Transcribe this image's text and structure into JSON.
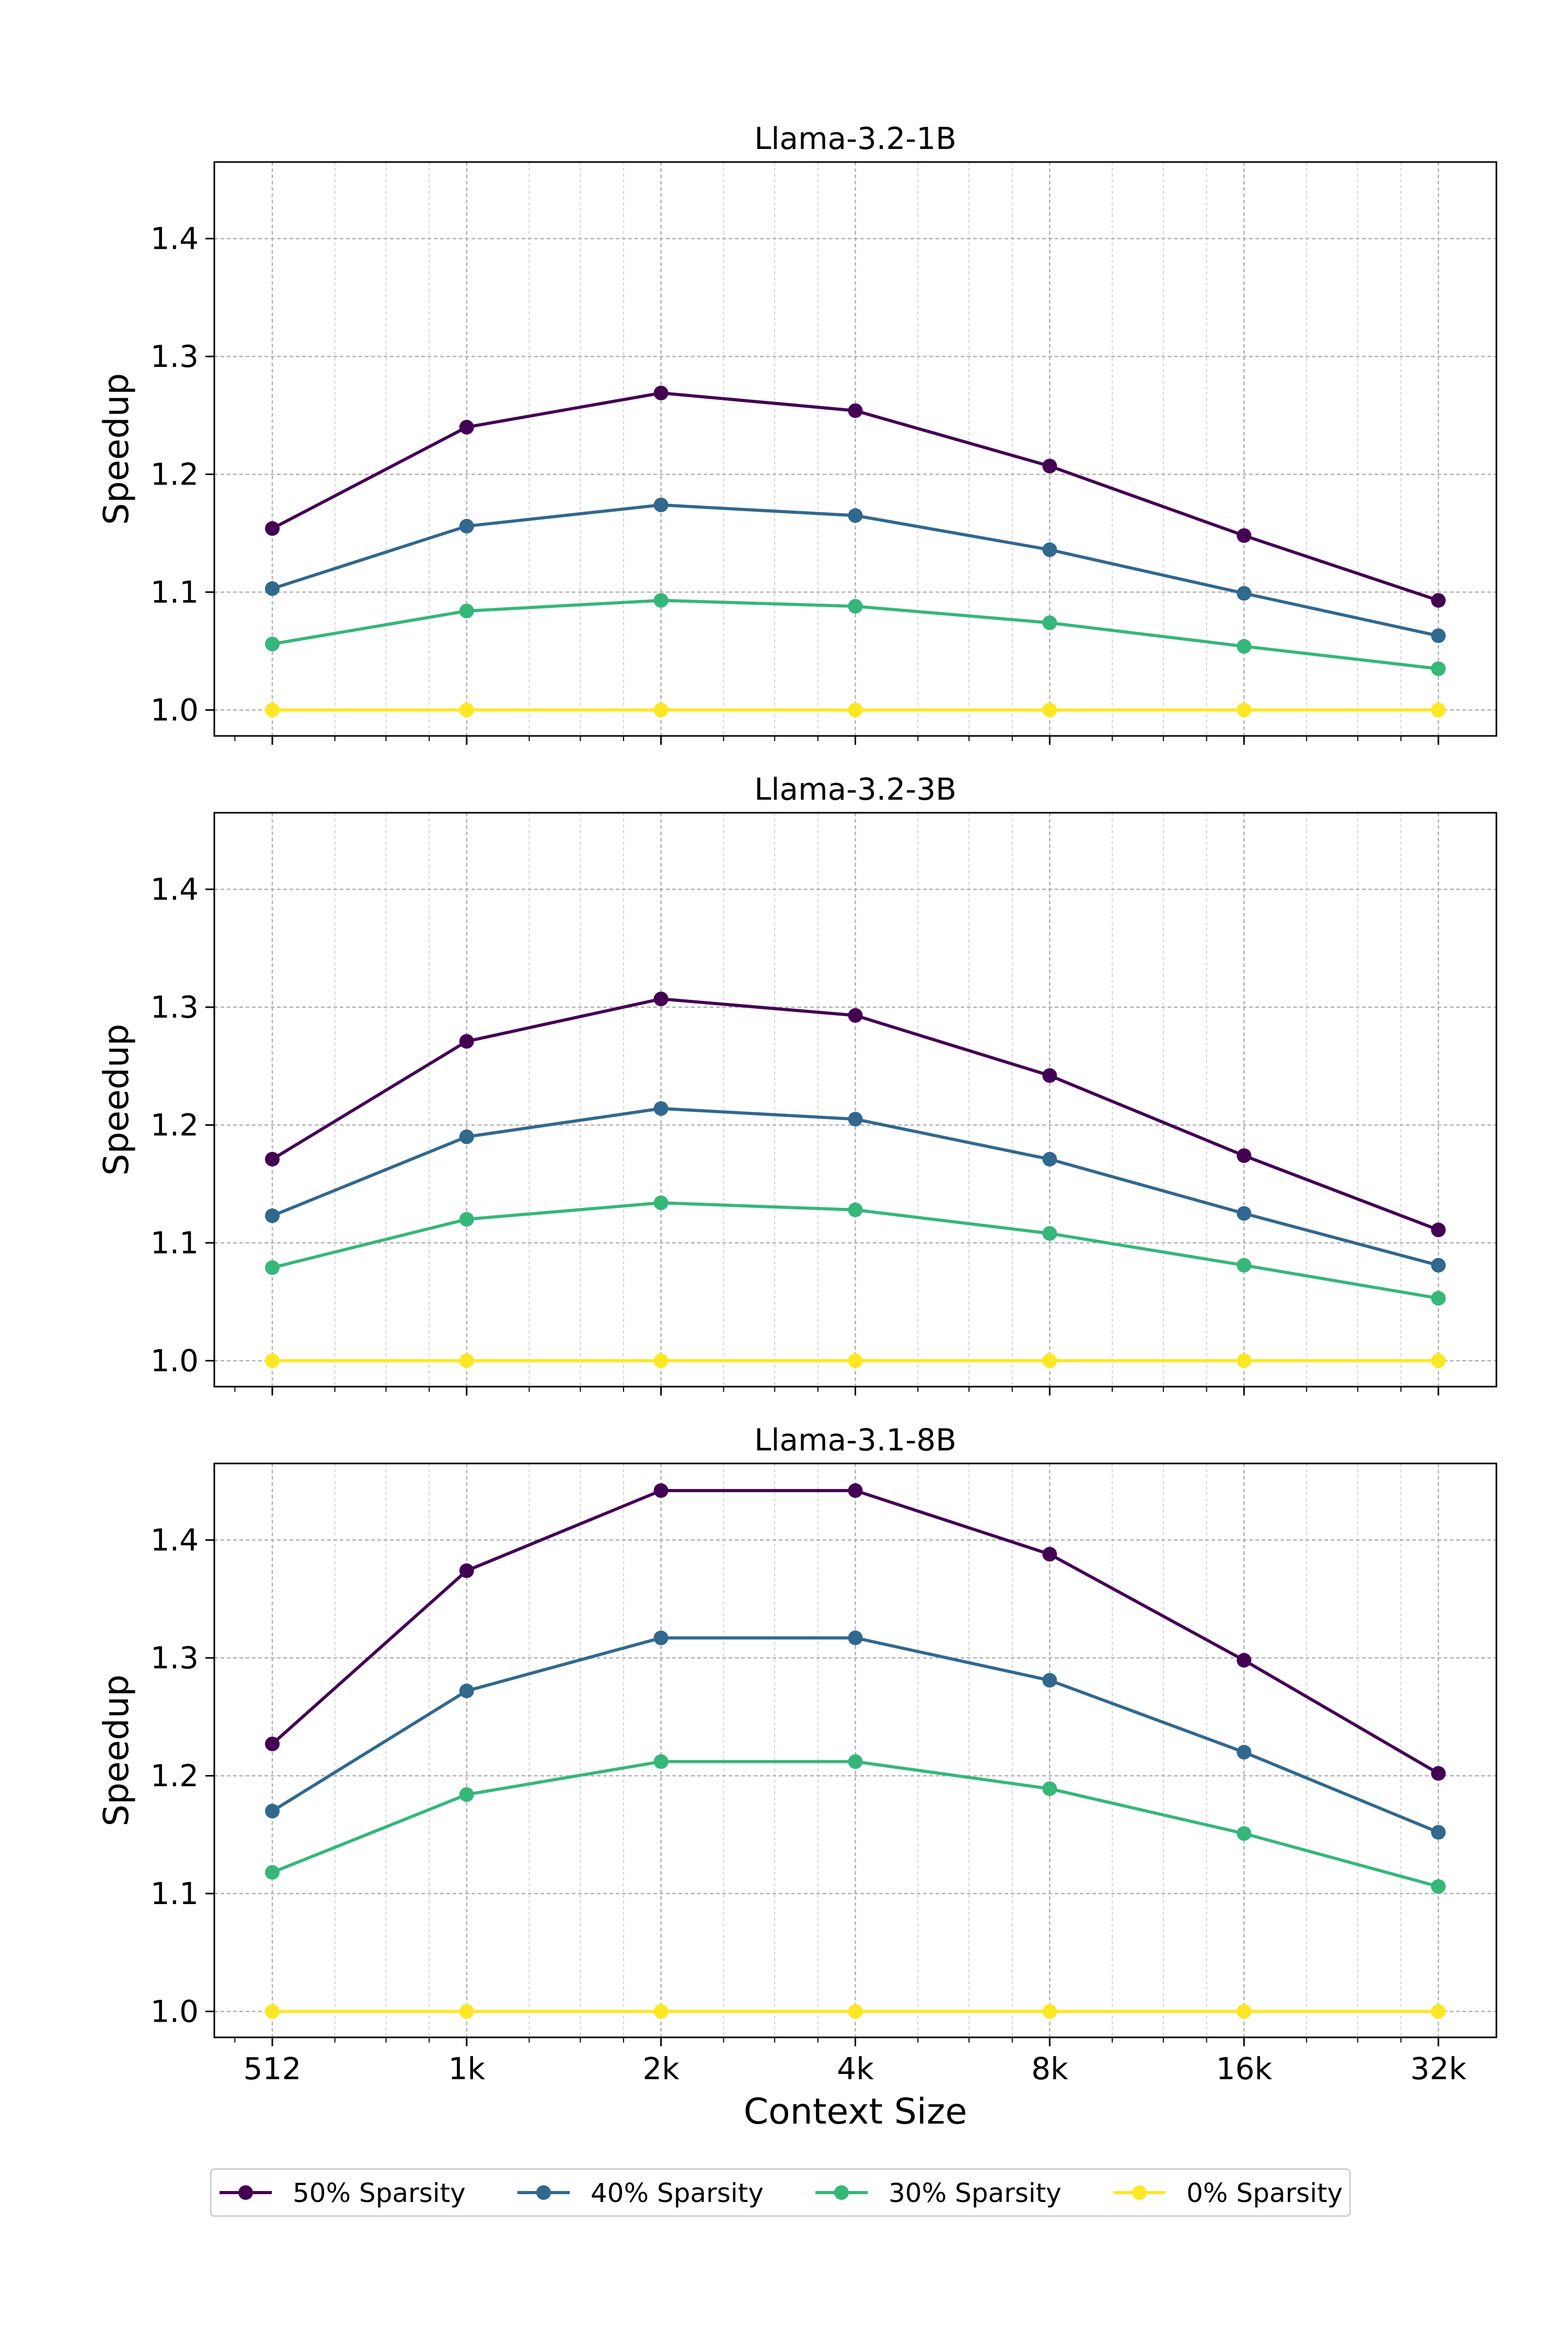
{
  "legend": {
    "placement": "bottom-center",
    "items": [
      {
        "label": "50% Sparsity",
        "color": "#440154"
      },
      {
        "label": "40% Sparsity",
        "color": "#31688e"
      },
      {
        "label": "30% Sparsity",
        "color": "#35b779"
      },
      {
        "label": "0% Sparsity",
        "color": "#fde725"
      }
    ]
  },
  "chart_data": [
    {
      "type": "line",
      "title": "Llama-3.2-1B",
      "xlabel": "",
      "ylabel": "Speedup",
      "x": [
        512,
        1024,
        2048,
        4096,
        8192,
        16384,
        32768
      ],
      "categories": [
        "512",
        "1k",
        "2k",
        "4k",
        "8k",
        "16k",
        "32k"
      ],
      "xscale": "log2",
      "ylim": [
        0.978,
        1.465
      ],
      "yticks": [
        "1.0",
        "1.1",
        "1.2",
        "1.3",
        "1.4"
      ],
      "grid": true,
      "series": [
        {
          "name": "50% Sparsity",
          "color": "#440154",
          "values": [
            1.154,
            1.24,
            1.269,
            1.254,
            1.207,
            1.148,
            1.093
          ]
        },
        {
          "name": "40% Sparsity",
          "color": "#31688e",
          "values": [
            1.103,
            1.156,
            1.174,
            1.165,
            1.136,
            1.099,
            1.063
          ]
        },
        {
          "name": "30% Sparsity",
          "color": "#35b779",
          "values": [
            1.056,
            1.084,
            1.093,
            1.088,
            1.074,
            1.054,
            1.035
          ]
        },
        {
          "name": "0% Sparsity",
          "color": "#fde725",
          "values": [
            1.0,
            1.0,
            1.0,
            1.0,
            1.0,
            1.0,
            1.0
          ]
        }
      ]
    },
    {
      "type": "line",
      "title": "Llama-3.2-3B",
      "xlabel": "",
      "ylabel": "Speedup",
      "x": [
        512,
        1024,
        2048,
        4096,
        8192,
        16384,
        32768
      ],
      "categories": [
        "512",
        "1k",
        "2k",
        "4k",
        "8k",
        "16k",
        "32k"
      ],
      "xscale": "log2",
      "ylim": [
        0.978,
        1.465
      ],
      "yticks": [
        "1.0",
        "1.1",
        "1.2",
        "1.3",
        "1.4"
      ],
      "grid": true,
      "series": [
        {
          "name": "50% Sparsity",
          "color": "#440154",
          "values": [
            1.171,
            1.271,
            1.307,
            1.293,
            1.242,
            1.174,
            1.111
          ]
        },
        {
          "name": "40% Sparsity",
          "color": "#31688e",
          "values": [
            1.123,
            1.19,
            1.214,
            1.205,
            1.171,
            1.125,
            1.081
          ]
        },
        {
          "name": "30% Sparsity",
          "color": "#35b779",
          "values": [
            1.079,
            1.12,
            1.134,
            1.128,
            1.108,
            1.081,
            1.053
          ]
        },
        {
          "name": "0% Sparsity",
          "color": "#fde725",
          "values": [
            1.0,
            1.0,
            1.0,
            1.0,
            1.0,
            1.0,
            1.0
          ]
        }
      ]
    },
    {
      "type": "line",
      "title": "Llama-3.1-8B",
      "xlabel": "Context Size",
      "ylabel": "Speedup",
      "x": [
        512,
        1024,
        2048,
        4096,
        8192,
        16384,
        32768
      ],
      "categories": [
        "512",
        "1k",
        "2k",
        "4k",
        "8k",
        "16k",
        "32k"
      ],
      "xscale": "log2",
      "ylim": [
        0.978,
        1.465
      ],
      "yticks": [
        "1.0",
        "1.1",
        "1.2",
        "1.3",
        "1.4"
      ],
      "grid": true,
      "series": [
        {
          "name": "50% Sparsity",
          "color": "#440154",
          "values": [
            1.227,
            1.374,
            1.442,
            1.442,
            1.388,
            1.298,
            1.202
          ]
        },
        {
          "name": "40% Sparsity",
          "color": "#31688e",
          "values": [
            1.17,
            1.272,
            1.317,
            1.317,
            1.281,
            1.22,
            1.152
          ]
        },
        {
          "name": "30% Sparsity",
          "color": "#35b779",
          "values": [
            1.118,
            1.184,
            1.212,
            1.212,
            1.189,
            1.151,
            1.106
          ]
        },
        {
          "name": "0% Sparsity",
          "color": "#fde725",
          "values": [
            1.0,
            1.0,
            1.0,
            1.0,
            1.0,
            1.0,
            1.0
          ]
        }
      ]
    }
  ]
}
